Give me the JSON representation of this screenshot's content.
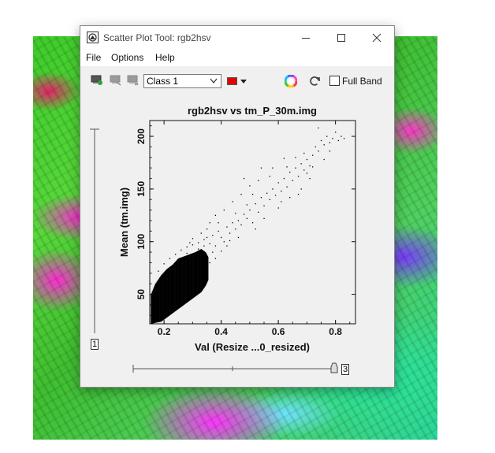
{
  "window": {
    "title": "Scatter Plot Tool: rgb2hsv",
    "menus": [
      "File",
      "Options",
      "Help"
    ]
  },
  "toolbar": {
    "class_select_value": "Class 1",
    "class_color": "#e00000",
    "full_band_label": "Full Band",
    "full_band_checked": false
  },
  "icons": [
    "roi-add-icon",
    "roi-delete-icon",
    "roi-export-icon",
    "color-wheel-icon",
    "refresh-icon"
  ],
  "y_slider": {
    "value_label": "1"
  },
  "x_slider": {
    "value_label": "3"
  },
  "chart_data": {
    "type": "scatter",
    "title": "rgb2hsv vs tm_P_30m.img",
    "xlabel": "Val (Resize ...0_resized)",
    "ylabel": "Mean (tm.img)",
    "xlim": [
      0.15,
      0.87
    ],
    "ylim": [
      22,
      215
    ],
    "xticks": [
      0.2,
      0.4,
      0.6,
      0.8
    ],
    "xtick_labels": [
      "0.2",
      "0.4",
      "0.6",
      "0.8"
    ],
    "yticks": [
      50,
      100,
      150,
      200
    ],
    "ytick_labels": [
      "50",
      "100",
      "150",
      "200"
    ],
    "dense_band": [
      [
        0.155,
        22,
        50
      ],
      [
        0.17,
        23,
        60
      ],
      [
        0.19,
        24,
        68
      ],
      [
        0.21,
        28,
        74
      ],
      [
        0.23,
        32,
        78
      ],
      [
        0.25,
        36,
        84
      ],
      [
        0.27,
        40,
        86
      ],
      [
        0.29,
        44,
        88
      ],
      [
        0.31,
        48,
        90
      ],
      [
        0.33,
        52,
        93
      ],
      [
        0.345,
        58,
        90
      ],
      [
        0.355,
        64,
        85
      ]
    ],
    "points": [
      [
        0.16,
        40
      ],
      [
        0.17,
        55
      ],
      [
        0.18,
        72
      ],
      [
        0.2,
        79
      ],
      [
        0.22,
        84
      ],
      [
        0.24,
        88
      ],
      [
        0.26,
        92
      ],
      [
        0.28,
        95
      ],
      [
        0.3,
        97
      ],
      [
        0.32,
        99
      ],
      [
        0.34,
        102
      ],
      [
        0.36,
        98
      ],
      [
        0.37,
        106
      ],
      [
        0.38,
        96
      ],
      [
        0.39,
        110
      ],
      [
        0.4,
        104
      ],
      [
        0.41,
        100
      ],
      [
        0.42,
        114
      ],
      [
        0.43,
        108
      ],
      [
        0.44,
        118
      ],
      [
        0.45,
        112
      ],
      [
        0.46,
        120
      ],
      [
        0.47,
        116
      ],
      [
        0.48,
        126
      ],
      [
        0.49,
        122
      ],
      [
        0.5,
        130
      ],
      [
        0.51,
        118
      ],
      [
        0.52,
        136
      ],
      [
        0.53,
        128
      ],
      [
        0.54,
        142
      ],
      [
        0.55,
        134
      ],
      [
        0.56,
        146
      ],
      [
        0.57,
        140
      ],
      [
        0.58,
        150
      ],
      [
        0.59,
        144
      ],
      [
        0.6,
        156
      ],
      [
        0.61,
        148
      ],
      [
        0.62,
        160
      ],
      [
        0.63,
        152
      ],
      [
        0.64,
        166
      ],
      [
        0.65,
        158
      ],
      [
        0.66,
        170
      ],
      [
        0.67,
        162
      ],
      [
        0.68,
        174
      ],
      [
        0.69,
        168
      ],
      [
        0.7,
        178
      ],
      [
        0.71,
        172
      ],
      [
        0.72,
        182
      ],
      [
        0.73,
        190
      ],
      [
        0.74,
        186
      ],
      [
        0.75,
        196
      ],
      [
        0.76,
        192
      ],
      [
        0.77,
        200
      ],
      [
        0.78,
        194
      ],
      [
        0.79,
        198
      ],
      [
        0.8,
        204
      ],
      [
        0.81,
        196
      ],
      [
        0.82,
        200
      ],
      [
        0.83,
        198
      ],
      [
        0.74,
        208
      ],
      [
        0.62,
        179
      ],
      [
        0.58,
        170
      ],
      [
        0.5,
        153
      ],
      [
        0.47,
        145
      ],
      [
        0.44,
        138
      ],
      [
        0.41,
        130
      ],
      [
        0.38,
        125
      ],
      [
        0.36,
        118
      ],
      [
        0.35,
        112
      ],
      [
        0.33,
        108
      ],
      [
        0.42,
        96
      ],
      [
        0.46,
        104
      ],
      [
        0.52,
        112
      ],
      [
        0.55,
        122
      ],
      [
        0.6,
        132
      ],
      [
        0.64,
        142
      ],
      [
        0.68,
        150
      ],
      [
        0.71,
        160
      ],
      [
        0.66,
        180
      ],
      [
        0.54,
        170
      ],
      [
        0.48,
        160
      ],
      [
        0.39,
        118
      ],
      [
        0.37,
        90
      ],
      [
        0.4,
        91
      ],
      [
        0.43,
        101
      ],
      [
        0.45,
        127
      ],
      [
        0.49,
        135
      ],
      [
        0.51,
        145
      ],
      [
        0.53,
        158
      ],
      [
        0.57,
        162
      ],
      [
        0.61,
        138
      ],
      [
        0.63,
        171
      ],
      [
        0.67,
        145
      ],
      [
        0.69,
        184
      ],
      [
        0.7,
        165
      ],
      [
        0.72,
        171
      ],
      [
        0.76,
        178
      ],
      [
        0.78,
        186
      ],
      [
        0.3,
        103
      ],
      [
        0.34,
        96
      ],
      [
        0.31,
        85
      ],
      [
        0.28,
        89
      ],
      [
        0.26,
        82
      ],
      [
        0.25,
        77
      ],
      [
        0.22,
        72
      ],
      [
        0.36,
        80
      ],
      [
        0.38,
        84
      ],
      [
        0.35,
        104
      ],
      [
        0.32,
        93
      ],
      [
        0.29,
        99
      ]
    ]
  }
}
